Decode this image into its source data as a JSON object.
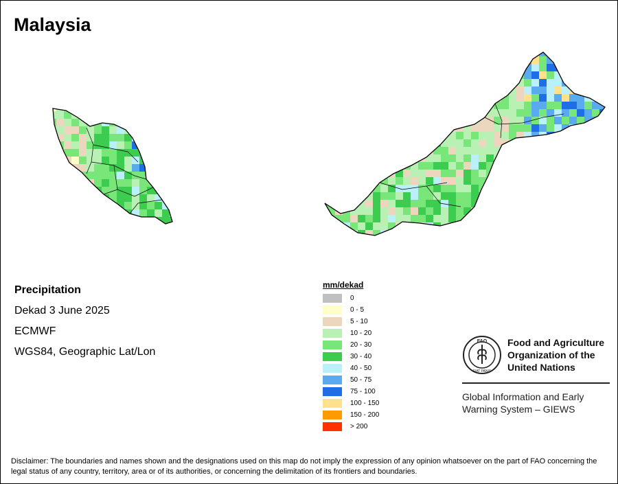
{
  "title": "Malaysia",
  "info": {
    "variable": "Precipitation",
    "period": "Dekad 3 June 2025",
    "source": "ECMWF",
    "projection": "WGS84, Geographic Lat/Lon"
  },
  "legend": {
    "title": "mm/dekad",
    "items": [
      {
        "label": "0",
        "color": "#c0c0c0"
      },
      {
        "label": "0 - 5",
        "color": "#ffffc8"
      },
      {
        "label": "5 - 10",
        "color": "#ecd7be"
      },
      {
        "label": "10 - 20",
        "color": "#b9f0b4"
      },
      {
        "label": "20 - 30",
        "color": "#78e678"
      },
      {
        "label": "30 - 40",
        "color": "#3ccd50"
      },
      {
        "label": "40 - 50",
        "color": "#b9f0fa"
      },
      {
        "label": "50 - 75",
        "color": "#5aaaf0"
      },
      {
        "label": "75 - 100",
        "color": "#1e6ee6"
      },
      {
        "label": "100 - 150",
        "color": "#ffe18c"
      },
      {
        "label": "150 - 200",
        "color": "#ff9b00"
      },
      {
        "label": "> 200",
        "color": "#ff3200"
      }
    ]
  },
  "org": {
    "name_line1": "Food and Agriculture",
    "name_line2": "Organization of the",
    "name_line3": "United Nations",
    "logo_text": "FAO",
    "logo_motto": "FIAT PANIS",
    "system_line1": "Global Information and Early",
    "system_line2": "Warning System – GIEWS"
  },
  "disclaimer": "Disclaimer: The boundaries and names shown and the designations used on this map do not imply the expression of any opinion whatsoever on the part of FAO concerning the legal status of any country, territory, area or of its authorities, or concerning the delimitation of its frontiers and boundaries."
}
